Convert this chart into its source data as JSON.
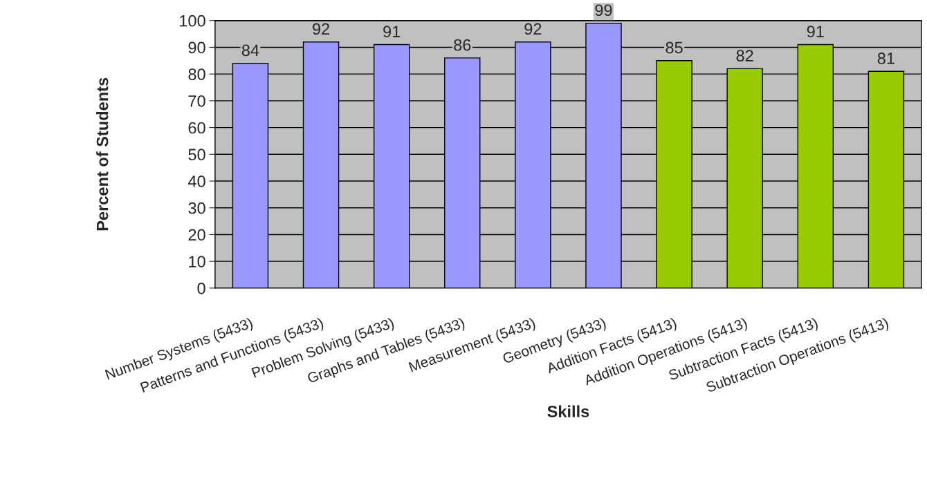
{
  "chart_data": {
    "type": "bar",
    "xlabel": "Skills",
    "ylabel": "Percent of Students",
    "categories": [
      "Number Systems (5433)",
      "Patterns and Functions (5433)",
      "Problem Solving (5433)",
      "Graphs and Tables (5433)",
      "Measurement (5433)",
      "Geometry (5433)",
      "Addition Facts (5413)",
      "Addition Operations (5413)",
      "Subtraction Facts (5413)",
      "Subtraction Operations (5413)"
    ],
    "values": [
      84,
      92,
      91,
      86,
      92,
      99,
      85,
      82,
      91,
      81
    ],
    "colors": [
      "#9999ff",
      "#9999ff",
      "#9999ff",
      "#9999ff",
      "#9999ff",
      "#9999ff",
      "#99cc00",
      "#99cc00",
      "#99cc00",
      "#99cc00"
    ],
    "ylim": [
      0,
      100
    ],
    "yticks": [
      0,
      10,
      20,
      30,
      40,
      50,
      60,
      70,
      80,
      90,
      100
    ],
    "grid": "y",
    "data_labels": true,
    "legend": false
  }
}
